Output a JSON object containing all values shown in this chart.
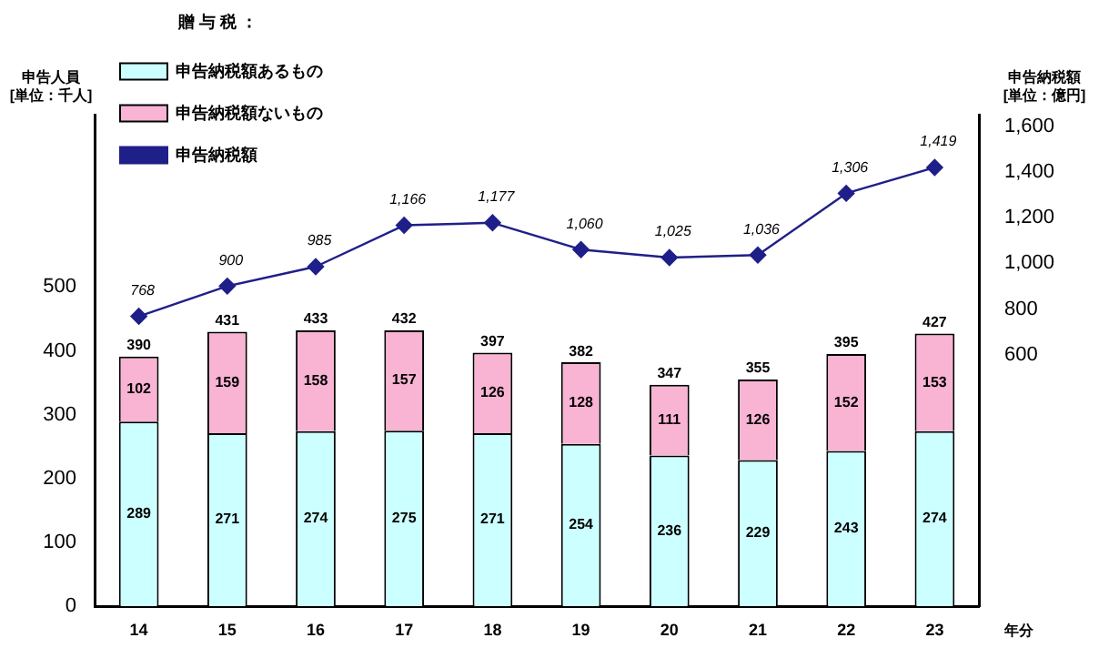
{
  "chart_data": {
    "type": "bar",
    "stacked": true,
    "categories": [
      "14",
      "15",
      "16",
      "17",
      "18",
      "19",
      "20",
      "21",
      "22",
      "23"
    ],
    "series": [
      {
        "name": "申告納税額あるもの",
        "color": "#ccffff",
        "values": [
          289,
          271,
          274,
          275,
          271,
          254,
          236,
          229,
          243,
          274
        ],
        "value_labels": [
          "289",
          "271",
          "274",
          "275",
          "271",
          "254",
          "236",
          "229",
          "243",
          "274"
        ]
      },
      {
        "name": "申告納税額ないもの",
        "color": "#f9b3d3",
        "values": [
          102,
          159,
          158,
          157,
          126,
          128,
          111,
          126,
          152,
          153
        ],
        "value_labels": [
          "102",
          "159",
          "158",
          "157",
          "126",
          "128",
          "111",
          "126",
          "152",
          "153"
        ]
      },
      {
        "name": "申告納税額",
        "type": "line",
        "axis": "y2",
        "color": "#1f1f8a",
        "marker": "diamond",
        "values": [
          768,
          900,
          985,
          1166,
          1177,
          1060,
          1025,
          1036,
          1306,
          1419
        ],
        "value_labels": [
          "768",
          "900",
          "985",
          "1,166",
          "1,177",
          "1,060",
          "1,025",
          "1,036",
          "1,306",
          "1,419"
        ]
      }
    ],
    "totals": [
      "390",
      "431",
      "433",
      "432",
      "397",
      "382",
      "347",
      "355",
      "395",
      "427"
    ],
    "legend": "top left",
    "legend_title": "贈 与 税 ：",
    "ylabel": "申告人員\n[単位：千人]",
    "y2label": "申告納税額\n[単位：億円]",
    "xlabel": "年分",
    "ylim": [
      0,
      770
    ],
    "yticks": [
      0,
      100,
      200,
      300,
      400,
      500
    ],
    "y2lim": [
      -500,
      1650
    ],
    "y2ticks": [
      600,
      800,
      {
        "value": 1000,
        "label": "1,000"
      },
      {
        "value": 1200,
        "label": "1,200"
      },
      {
        "value": 1400,
        "label": "1,400"
      },
      {
        "value": 1600,
        "label": "1,600"
      }
    ],
    "grid": false
  }
}
